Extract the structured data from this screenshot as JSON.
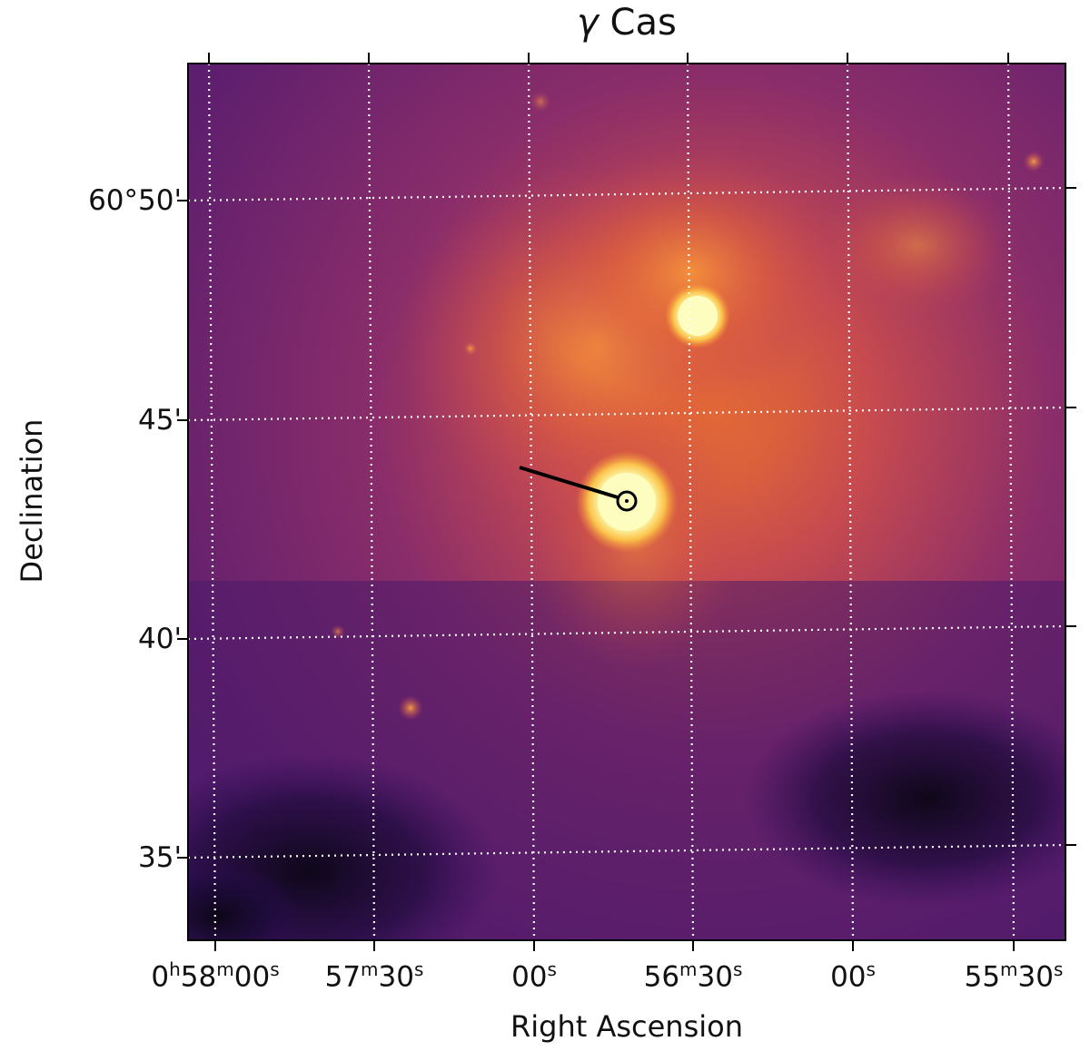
{
  "figure": {
    "title_prefix": "γ",
    "title_text": "Cas",
    "xlabel": "Right Ascension",
    "ylabel": "Declination",
    "colormap": [
      "#000004",
      "#2d0b59",
      "#5a1a6e",
      "#8b2a6c",
      "#c0425b",
      "#e8623a",
      "#f98d2f",
      "#fbbf4a",
      "#fcfdbf"
    ],
    "ra_ticks": [
      {
        "h": "0",
        "m": "58",
        "s": "00",
        "parts": [
          [
            "0",
            "h"
          ],
          [
            "58",
            "m"
          ],
          [
            "00",
            "s"
          ]
        ]
      },
      {
        "parts": [
          [
            "57",
            "m"
          ],
          [
            "30",
            "s"
          ]
        ]
      },
      {
        "parts": [
          [
            "00",
            "s"
          ]
        ]
      },
      {
        "parts": [
          [
            "56",
            "m"
          ],
          [
            "30",
            "s"
          ]
        ]
      },
      {
        "parts": [
          [
            "00",
            "s"
          ]
        ]
      },
      {
        "parts": [
          [
            "55",
            "m"
          ],
          [
            "30",
            "s"
          ]
        ]
      }
    ],
    "dec_ticks": [
      "60°50'",
      "45'",
      "40'",
      "35'"
    ],
    "grid": "dotted white",
    "marker": "circle with black line segment"
  }
}
